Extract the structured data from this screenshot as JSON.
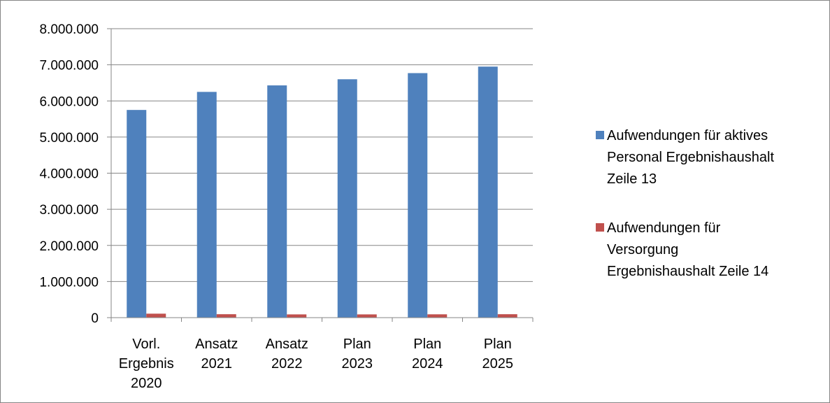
{
  "chart_data": {
    "type": "bar",
    "categories": [
      [
        "Vorl.",
        "Ergebnis",
        "2020"
      ],
      [
        "Ansatz",
        "2021"
      ],
      [
        "Ansatz",
        "2022"
      ],
      [
        "Plan",
        "2023"
      ],
      [
        "Plan",
        "2024"
      ],
      [
        "Plan",
        "2025"
      ]
    ],
    "series": [
      {
        "name": "Aufwendungen für aktives Personal Ergebnishaushalt Zeile 13",
        "name_lines": [
          "Aufwendungen für aktives",
          "Personal Ergebnishaushalt",
          "Zeile 13"
        ],
        "color": "#4f81bd",
        "values": [
          5750000,
          6250000,
          6430000,
          6600000,
          6770000,
          6950000
        ]
      },
      {
        "name": "Aufwendungen für Versorgung Ergebnishaushalt Zeile 14",
        "name_lines": [
          "Aufwendungen für",
          "Versorgung",
          "Ergebnishaushalt Zeile 14"
        ],
        "color": "#c0504d",
        "values": [
          110000,
          95000,
          90000,
          90000,
          92000,
          95000
        ]
      }
    ],
    "y_ticks": [
      {
        "value": 0,
        "label": "0"
      },
      {
        "value": 1000000,
        "label": "1.000.000"
      },
      {
        "value": 2000000,
        "label": "2.000.000"
      },
      {
        "value": 3000000,
        "label": "3.000.000"
      },
      {
        "value": 4000000,
        "label": "4.000.000"
      },
      {
        "value": 5000000,
        "label": "5.000.000"
      },
      {
        "value": 6000000,
        "label": "6.000.000"
      },
      {
        "value": 7000000,
        "label": "7.000.000"
      },
      {
        "value": 8000000,
        "label": "8.000.000"
      }
    ],
    "ylim": [
      0,
      8000000
    ],
    "grid": true,
    "legend_position": "right",
    "axis_color": "#868686",
    "title": "",
    "xlabel": "",
    "ylabel": ""
  }
}
